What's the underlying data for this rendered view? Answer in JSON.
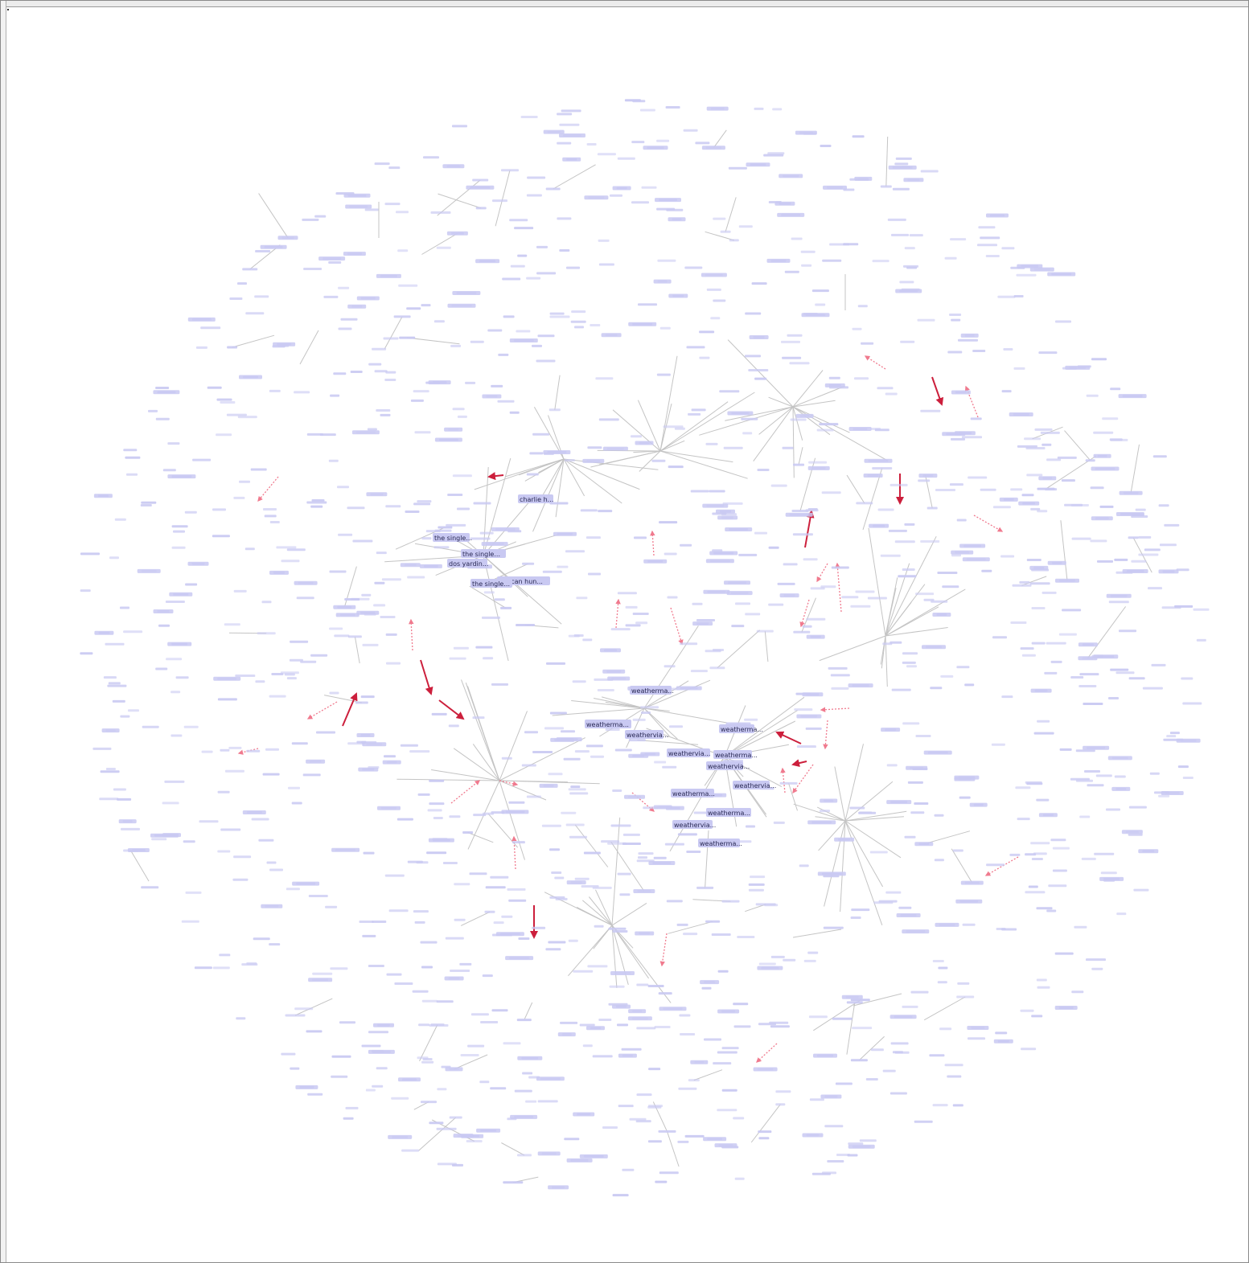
{
  "window": {
    "background": "#ffffff",
    "frame_color": "#8a8a8a"
  },
  "graph": {
    "node_color": "#c9c9f2",
    "node_text_color": "#2a2a55",
    "edge_color": "#c4c4c4",
    "strong_edge_color": "#cc1f3c",
    "dashed_edge_color": "#f07a8e",
    "labels": [
      "the single...",
      "dos yardin...",
      "duncan hun...",
      "the single...",
      "the single...",
      "charlie h...",
      "weatherma...",
      "weatherma...",
      "weathervia...",
      "weatherma...",
      "weathervia...",
      "weatherma...",
      "weathervia...",
      "weathervia...",
      "weatherma...",
      "weatherma...",
      "weathervia...",
      "weatherma..."
    ]
  }
}
